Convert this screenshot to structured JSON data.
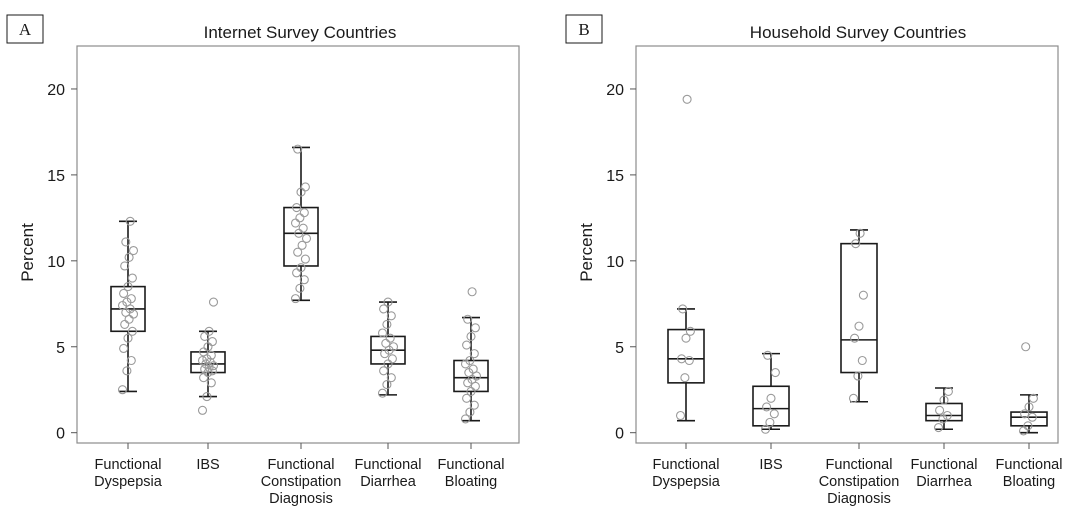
{
  "chart_data": [
    {
      "type": "boxplot",
      "panel_label": "A",
      "title": "Internet Survey Countries",
      "ylabel": "Percent",
      "ylim": [
        -0.6,
        22.5
      ],
      "yticks": [
        "0",
        "5",
        "10",
        "15",
        "20"
      ],
      "grid": false,
      "categories": [
        [
          "Functional",
          "Dyspepsia"
        ],
        [
          "IBS"
        ],
        [
          "Functional",
          "Constipation",
          "Diagnosis"
        ],
        [
          "Functional",
          "Diarrhea"
        ],
        [
          "Functional",
          "Bloating"
        ]
      ],
      "boxes": [
        {
          "min": 2.4,
          "q1": 5.9,
          "median": 7.2,
          "q3": 8.5,
          "max": 12.3,
          "points": [
            2.5,
            3.6,
            4.2,
            4.9,
            5.5,
            5.9,
            6.3,
            6.6,
            6.9,
            7.0,
            7.2,
            7.4,
            7.6,
            7.8,
            8.1,
            8.5,
            9.0,
            9.7,
            10.2,
            10.6,
            11.1,
            12.3
          ]
        },
        {
          "min": 2.1,
          "q1": 3.5,
          "median": 4.0,
          "q3": 4.7,
          "max": 5.9,
          "points": [
            1.3,
            2.1,
            2.9,
            3.2,
            3.5,
            3.6,
            3.7,
            3.8,
            3.9,
            4.0,
            4.1,
            4.2,
            4.3,
            4.5,
            4.7,
            5.0,
            5.3,
            5.6,
            5.9,
            7.6
          ]
        },
        {
          "min": 7.7,
          "q1": 9.7,
          "median": 11.6,
          "q3": 13.1,
          "max": 16.6,
          "points": [
            7.8,
            8.4,
            8.9,
            9.3,
            9.6,
            10.1,
            10.5,
            10.9,
            11.3,
            11.6,
            11.9,
            12.2,
            12.5,
            12.8,
            13.1,
            14.0,
            14.3,
            16.5
          ]
        },
        {
          "min": 2.2,
          "q1": 4.0,
          "median": 4.8,
          "q3": 5.6,
          "max": 7.6,
          "points": [
            2.3,
            2.8,
            3.2,
            3.6,
            4.0,
            4.3,
            4.6,
            4.8,
            5.0,
            5.2,
            5.5,
            5.8,
            6.3,
            6.8,
            7.2,
            7.6
          ]
        },
        {
          "min": 0.7,
          "q1": 2.4,
          "median": 3.2,
          "q3": 4.2,
          "max": 6.7,
          "points": [
            0.8,
            1.2,
            1.6,
            2.0,
            2.4,
            2.7,
            2.9,
            3.1,
            3.3,
            3.5,
            3.7,
            4.0,
            4.2,
            4.6,
            5.1,
            5.6,
            6.1,
            6.6,
            8.2
          ]
        }
      ]
    },
    {
      "type": "boxplot",
      "panel_label": "B",
      "title": "Household Survey Countries",
      "ylabel": "Percent",
      "ylim": [
        -0.6,
        22.5
      ],
      "yticks": [
        "0",
        "5",
        "10",
        "15",
        "20"
      ],
      "grid": false,
      "categories": [
        [
          "Functional",
          "Dyspepsia"
        ],
        [
          "IBS"
        ],
        [
          "Functional",
          "Constipation",
          "Diagnosis"
        ],
        [
          "Functional",
          "Diarrhea"
        ],
        [
          "Functional",
          "Bloating"
        ]
      ],
      "boxes": [
        {
          "min": 0.7,
          "q1": 2.9,
          "median": 4.3,
          "q3": 6.0,
          "max": 7.2,
          "points": [
            1.0,
            3.2,
            4.2,
            4.3,
            5.5,
            5.9,
            7.2,
            19.4
          ]
        },
        {
          "min": 0.2,
          "q1": 0.4,
          "median": 1.4,
          "q3": 2.7,
          "max": 4.6,
          "points": [
            0.2,
            0.6,
            1.1,
            1.5,
            2.0,
            3.5,
            4.5
          ]
        },
        {
          "min": 1.8,
          "q1": 3.5,
          "median": 5.4,
          "q3": 11.0,
          "max": 11.8,
          "points": [
            2.0,
            3.3,
            4.2,
            5.5,
            6.2,
            8.0,
            11.0,
            11.6
          ]
        },
        {
          "min": 0.2,
          "q1": 0.7,
          "median": 1.0,
          "q3": 1.7,
          "max": 2.6,
          "points": [
            0.3,
            0.8,
            1.0,
            1.3,
            1.9,
            2.4
          ]
        },
        {
          "min": 0.0,
          "q1": 0.4,
          "median": 0.9,
          "q3": 1.2,
          "max": 2.2,
          "points": [
            0.1,
            0.4,
            0.9,
            1.1,
            1.5,
            2.0,
            5.0
          ]
        }
      ]
    }
  ]
}
